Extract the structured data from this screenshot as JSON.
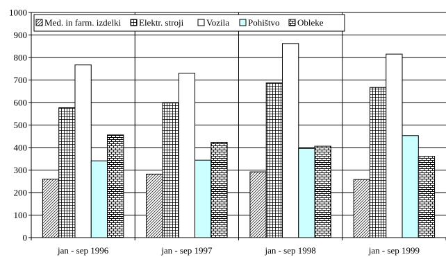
{
  "chart_data": {
    "type": "bar",
    "categories": [
      "jan - sep 1996",
      "jan - sep 1997",
      "jan - sep 1998",
      "jan - sep 1999"
    ],
    "series": [
      {
        "name": "Med. in farm. izdelki",
        "values": [
          260,
          282,
          292,
          258
        ],
        "pattern": "diagonal",
        "color": "#ffffff"
      },
      {
        "name": "Elektr. stroji",
        "values": [
          577,
          598,
          687,
          667
        ],
        "pattern": "grid",
        "color": "#ffffff"
      },
      {
        "name": "Vozila",
        "values": [
          767,
          730,
          862,
          815
        ],
        "pattern": "none",
        "color": "#ffffff"
      },
      {
        "name": "Pohištvo",
        "values": [
          341,
          344,
          396,
          453
        ],
        "pattern": "none",
        "color": "#ccffff"
      },
      {
        "name": "Obleke",
        "values": [
          456,
          423,
          406,
          361
        ],
        "pattern": "bricks",
        "color": "#ffffff"
      }
    ],
    "ylim": [
      0,
      1000
    ],
    "yticks": [
      "0",
      "100",
      "200",
      "300",
      "400",
      "500",
      "600",
      "700",
      "800",
      "900",
      "1000"
    ],
    "grid": true,
    "legend": "top-left",
    "title": "",
    "xlabel": "",
    "ylabel": ""
  }
}
